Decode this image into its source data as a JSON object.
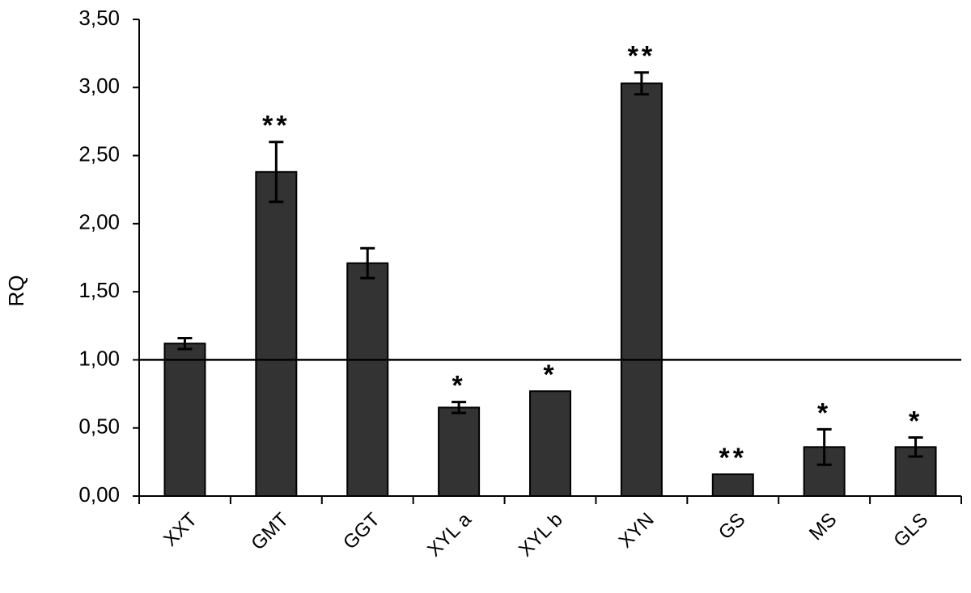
{
  "chart_data": {
    "type": "bar",
    "ylabel": "RQ",
    "categories": [
      "XXT",
      "GMT",
      "GGT",
      "XYL a",
      "XYL b",
      "XYN",
      "GS",
      "MS",
      "GLS"
    ],
    "values": [
      1.12,
      2.38,
      1.71,
      0.65,
      0.77,
      3.03,
      0.16,
      0.36,
      0.36
    ],
    "errors": [
      0.04,
      0.22,
      0.11,
      0.04,
      null,
      0.08,
      null,
      0.13,
      0.07
    ],
    "significance": [
      null,
      "**",
      null,
      "*",
      "*",
      "**",
      "**",
      "*",
      "*"
    ],
    "color": "#333333",
    "reference_line": 1,
    "ylim": [
      0,
      3.5
    ],
    "yticks": [
      {
        "value": 0,
        "label": "0,00"
      },
      {
        "value": 0.5,
        "label": "0,50"
      },
      {
        "value": 1,
        "label": "1,00"
      },
      {
        "value": 1.5,
        "label": "1,50"
      },
      {
        "value": 2,
        "label": "2,00"
      },
      {
        "value": 2.5,
        "label": "2,50"
      },
      {
        "value": 3,
        "label": "3,00"
      },
      {
        "value": 3.5,
        "label": "3,50"
      }
    ]
  }
}
